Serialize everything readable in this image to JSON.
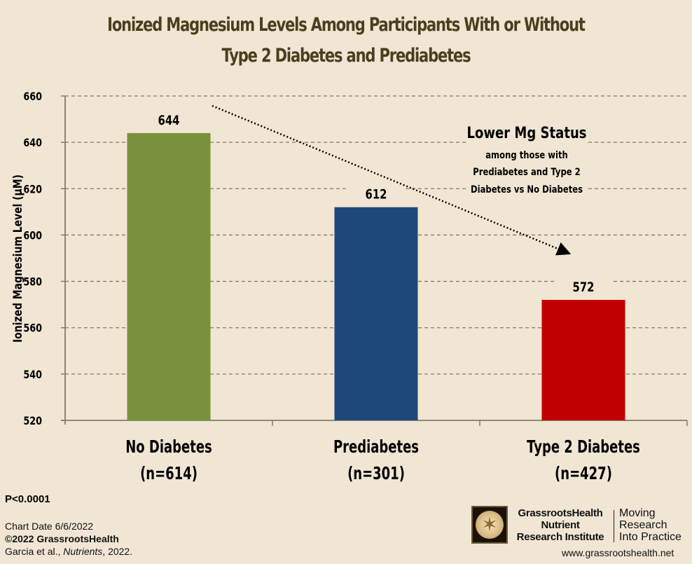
{
  "chart_data": {
    "type": "bar",
    "title": "Ionized Magnesium Levels Among Participants With or Without Type 2 Diabetes and Prediabetes",
    "title_lines": [
      "Ionized Magnesium Levels Among Participants With or Without",
      "Type 2 Diabetes and Prediabetes"
    ],
    "xlabel": "",
    "ylabel": "Ionized Magnesium Level (µM)",
    "ylim": [
      520,
      660
    ],
    "yticks": [
      520,
      540,
      560,
      580,
      600,
      620,
      640,
      660
    ],
    "grid": true,
    "categories": [
      {
        "name": "No Diabetes",
        "n": "(n=614)"
      },
      {
        "name": "Prediabetes",
        "n": "(n=301)"
      },
      {
        "name": "Type 2 Diabetes",
        "n": "(n=427)"
      }
    ],
    "values": [
      644,
      612,
      572
    ],
    "data_labels": [
      "644",
      "612",
      "572"
    ],
    "colors": [
      "#78923c",
      "#1f487a",
      "#c00000"
    ],
    "annotation": {
      "heading": "Lower Mg Status",
      "lines": [
        "among those with",
        "Prediabetes and Type 2",
        "Diabetes vs No Diabetes"
      ],
      "arrow": "dotted arrow from above No Diabetes bar toward Type 2 Diabetes bar"
    }
  },
  "footer": {
    "p_value": "P<0.0001",
    "chart_date": "Chart Date 6/6/2022",
    "copyright": "©2022 GrassrootsHealth",
    "citation_authors": "Garcia et al., ",
    "citation_journal": "Nutrients",
    "citation_year": ", 2022."
  },
  "branding": {
    "logo_icon": "vitruvian-man-icon",
    "org_lines": [
      "GrassrootsHealth",
      "Nutrient",
      "Research Institute"
    ],
    "tagline_lines": [
      "Moving",
      "Research",
      "Into Practice"
    ],
    "url": "www.grassrootshealth.net"
  }
}
